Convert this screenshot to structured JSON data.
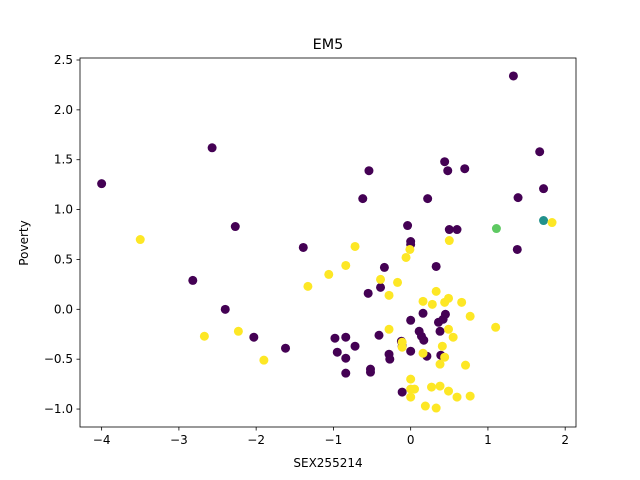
{
  "chart_data": {
    "type": "scatter",
    "title": "EM5",
    "xlabel": "SEX255214",
    "ylabel": "Poverty",
    "xlim": [
      -4.28,
      2.14
    ],
    "ylim": [
      -1.18,
      2.52
    ],
    "xticks": [
      -4,
      -3,
      -2,
      -1,
      0,
      1,
      2
    ],
    "yticks": [
      -1.0,
      -0.5,
      0.0,
      0.5,
      1.0,
      1.5,
      2.0,
      2.5
    ],
    "xtick_labels": [
      "−4",
      "−3",
      "−2",
      "−1",
      "0",
      "1",
      "2"
    ],
    "ytick_labels": [
      "−1.0",
      "−0.5",
      "0.0",
      "0.5",
      "1.0",
      "1.5",
      "2.0",
      "2.5"
    ],
    "grid": false,
    "colors": {
      "purple": "#440154",
      "teal": "#21918c",
      "green": "#5ec962",
      "yellow": "#fde725"
    },
    "series": [
      {
        "color_key": "purple",
        "points": [
          [
            -4.0,
            1.26
          ],
          [
            -2.57,
            1.62
          ],
          [
            -2.82,
            0.29
          ],
          [
            -2.4,
            0.0
          ],
          [
            -2.27,
            0.83
          ],
          [
            -2.03,
            -0.28
          ],
          [
            -1.62,
            -0.39
          ],
          [
            -1.39,
            0.62
          ],
          [
            -0.98,
            -0.29
          ],
          [
            -0.95,
            -0.43
          ],
          [
            -0.84,
            -0.28
          ],
          [
            -0.84,
            -0.49
          ],
          [
            -0.84,
            -0.64
          ],
          [
            -0.72,
            -0.37
          ],
          [
            -0.62,
            1.11
          ],
          [
            -0.54,
            1.39
          ],
          [
            -0.55,
            0.16
          ],
          [
            -0.52,
            -0.6
          ],
          [
            -0.52,
            -0.63
          ],
          [
            -0.41,
            -0.26
          ],
          [
            -0.39,
            0.22
          ],
          [
            -0.34,
            0.42
          ],
          [
            -0.28,
            -0.45
          ],
          [
            -0.27,
            -0.5
          ],
          [
            -0.12,
            -0.32
          ],
          [
            -0.11,
            -0.37
          ],
          [
            -0.11,
            -0.83
          ],
          [
            -0.04,
            0.84
          ],
          [
            0.0,
            0.68
          ],
          [
            0.0,
            0.65
          ],
          [
            0.0,
            -0.11
          ],
          [
            0.0,
            -0.42
          ],
          [
            0.11,
            -0.22
          ],
          [
            0.14,
            -0.27
          ],
          [
            0.16,
            -0.04
          ],
          [
            0.17,
            -0.31
          ],
          [
            0.21,
            -0.47
          ],
          [
            0.22,
            1.11
          ],
          [
            0.33,
            0.43
          ],
          [
            0.36,
            -0.13
          ],
          [
            0.38,
            -0.22
          ],
          [
            0.39,
            -0.46
          ],
          [
            0.42,
            -0.1
          ],
          [
            0.45,
            -0.05
          ],
          [
            0.44,
            1.48
          ],
          [
            0.48,
            1.39
          ],
          [
            0.5,
            0.8
          ],
          [
            0.6,
            0.8
          ],
          [
            0.7,
            1.41
          ],
          [
            1.33,
            2.34
          ],
          [
            1.39,
            1.12
          ],
          [
            1.38,
            0.6
          ],
          [
            1.67,
            1.58
          ],
          [
            1.72,
            1.21
          ]
        ]
      },
      {
        "color_key": "teal",
        "points": [
          [
            1.72,
            0.89
          ]
        ]
      },
      {
        "color_key": "green",
        "points": [
          [
            1.11,
            0.81
          ]
        ]
      },
      {
        "color_key": "yellow",
        "points": [
          [
            -3.5,
            0.7
          ],
          [
            -2.67,
            -0.27
          ],
          [
            -2.23,
            -0.22
          ],
          [
            -1.9,
            -0.51
          ],
          [
            -1.33,
            0.23
          ],
          [
            -1.06,
            0.35
          ],
          [
            -0.84,
            0.44
          ],
          [
            -0.72,
            0.63
          ],
          [
            -0.39,
            0.3
          ],
          [
            -0.28,
            0.14
          ],
          [
            -0.28,
            -0.2
          ],
          [
            -0.17,
            0.27
          ],
          [
            -0.11,
            -0.33
          ],
          [
            -0.11,
            -0.38
          ],
          [
            -0.06,
            0.52
          ],
          [
            -0.01,
            0.6
          ],
          [
            0.0,
            -0.7
          ],
          [
            0.0,
            -0.8
          ],
          [
            0.0,
            -0.88
          ],
          [
            0.05,
            -0.8
          ],
          [
            0.16,
            -0.44
          ],
          [
            0.16,
            0.08
          ],
          [
            0.19,
            -0.97
          ],
          [
            0.27,
            -0.78
          ],
          [
            0.28,
            0.05
          ],
          [
            0.33,
            0.18
          ],
          [
            0.33,
            -0.99
          ],
          [
            0.38,
            -0.77
          ],
          [
            0.38,
            -0.55
          ],
          [
            0.41,
            -0.37
          ],
          [
            0.44,
            0.07
          ],
          [
            0.44,
            -0.48
          ],
          [
            0.49,
            0.11
          ],
          [
            0.49,
            -0.82
          ],
          [
            0.49,
            -0.2
          ],
          [
            0.5,
            0.69
          ],
          [
            0.55,
            -0.28
          ],
          [
            0.6,
            -0.88
          ],
          [
            0.66,
            0.07
          ],
          [
            0.71,
            -0.56
          ],
          [
            0.77,
            -0.07
          ],
          [
            0.77,
            -0.87
          ],
          [
            1.1,
            -0.18
          ],
          [
            1.83,
            0.87
          ]
        ]
      }
    ]
  }
}
